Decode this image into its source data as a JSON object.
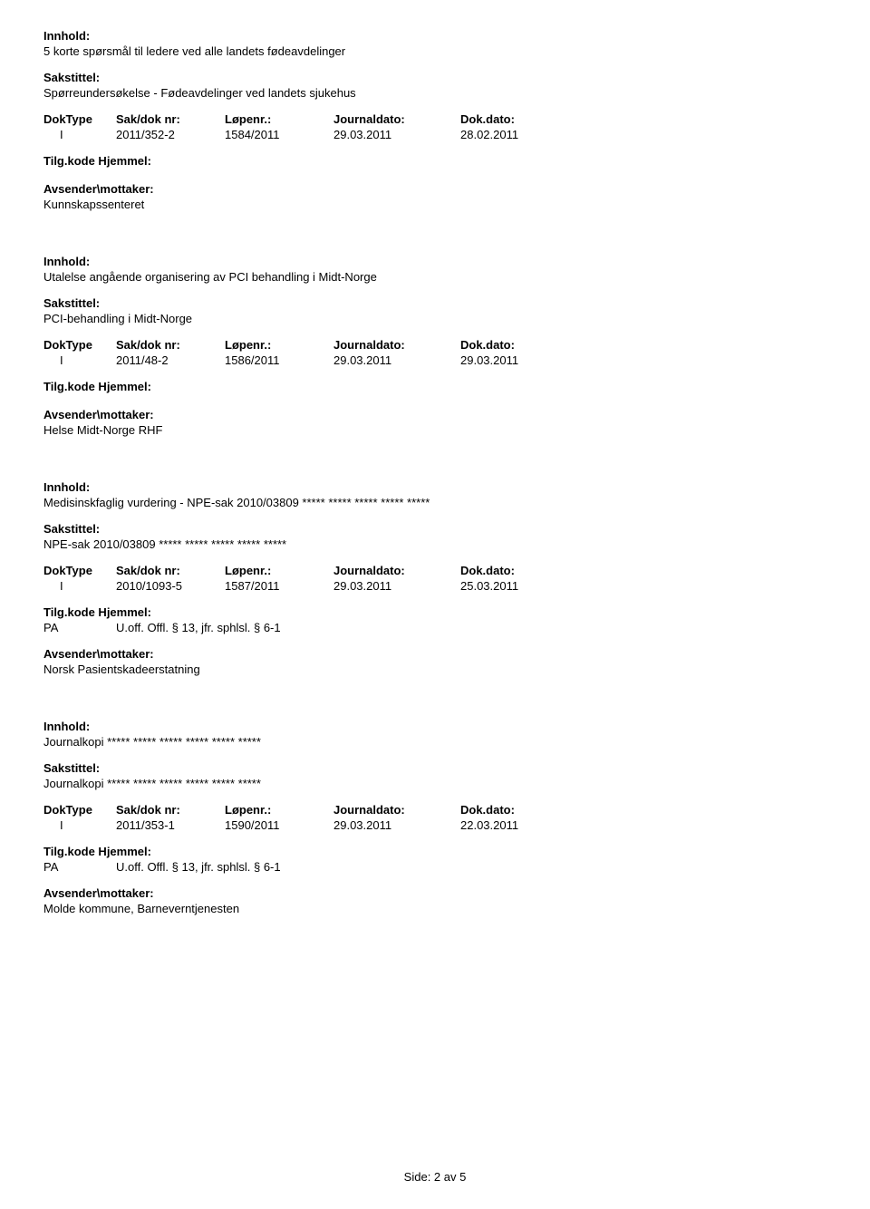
{
  "labels": {
    "innhold": "Innhold:",
    "sakstittel": "Sakstittel:",
    "doktype": "DokType",
    "sakdok": "Sak/dok nr:",
    "lopenr": "Løpenr.:",
    "journaldato": "Journaldato:",
    "dokdato": "Dok.dato:",
    "tilgkode": "Tilg.kode",
    "hjemmel": "Hjemmel:",
    "avsender": "Avsender\\mottaker:"
  },
  "entries": [
    {
      "innhold": "5 korte spørsmål til ledere ved alle landets fødeavdelinger",
      "sakstittel": "Spørreundersøkelse - Fødeavdelinger ved landets sjukehus",
      "doktype": "I",
      "sakdok": "2011/352-2",
      "lopenr": "1584/2011",
      "journaldato": "29.03.2011",
      "dokdato": "28.02.2011",
      "tilgkode": "",
      "hjemmel": "",
      "avsender": "Kunnskapssenteret"
    },
    {
      "innhold": "Utalelse angående organisering av PCI behandling i Midt-Norge",
      "sakstittel": "PCI-behandling i Midt-Norge",
      "doktype": "I",
      "sakdok": "2011/48-2",
      "lopenr": "1586/2011",
      "journaldato": "29.03.2011",
      "dokdato": "29.03.2011",
      "tilgkode": "",
      "hjemmel": "",
      "avsender": "Helse Midt-Norge RHF"
    },
    {
      "innhold": "Medisinskfaglig vurdering - NPE-sak 2010/03809 ***** ***** ***** ***** *****",
      "sakstittel": "NPE-sak 2010/03809 ***** ***** ***** ***** *****",
      "doktype": "I",
      "sakdok": "2010/1093-5",
      "lopenr": "1587/2011",
      "journaldato": "29.03.2011",
      "dokdato": "25.03.2011",
      "tilgkode": "PA",
      "hjemmel": "U.off. Offl. § 13, jfr. sphlsl. § 6-1",
      "avsender": "Norsk Pasientskadeerstatning"
    },
    {
      "innhold": "Journalkopi ***** ***** ***** ***** ***** *****",
      "sakstittel": "Journalkopi ***** ***** ***** ***** ***** *****",
      "doktype": "I",
      "sakdok": "2011/353-1",
      "lopenr": "1590/2011",
      "journaldato": "29.03.2011",
      "dokdato": "22.03.2011",
      "tilgkode": "PA",
      "hjemmel": "U.off. Offl. § 13, jfr. sphlsl. § 6-1",
      "avsender": "Molde kommune, Barneverntjenesten"
    }
  ],
  "footer": "Side: 2 av 5"
}
